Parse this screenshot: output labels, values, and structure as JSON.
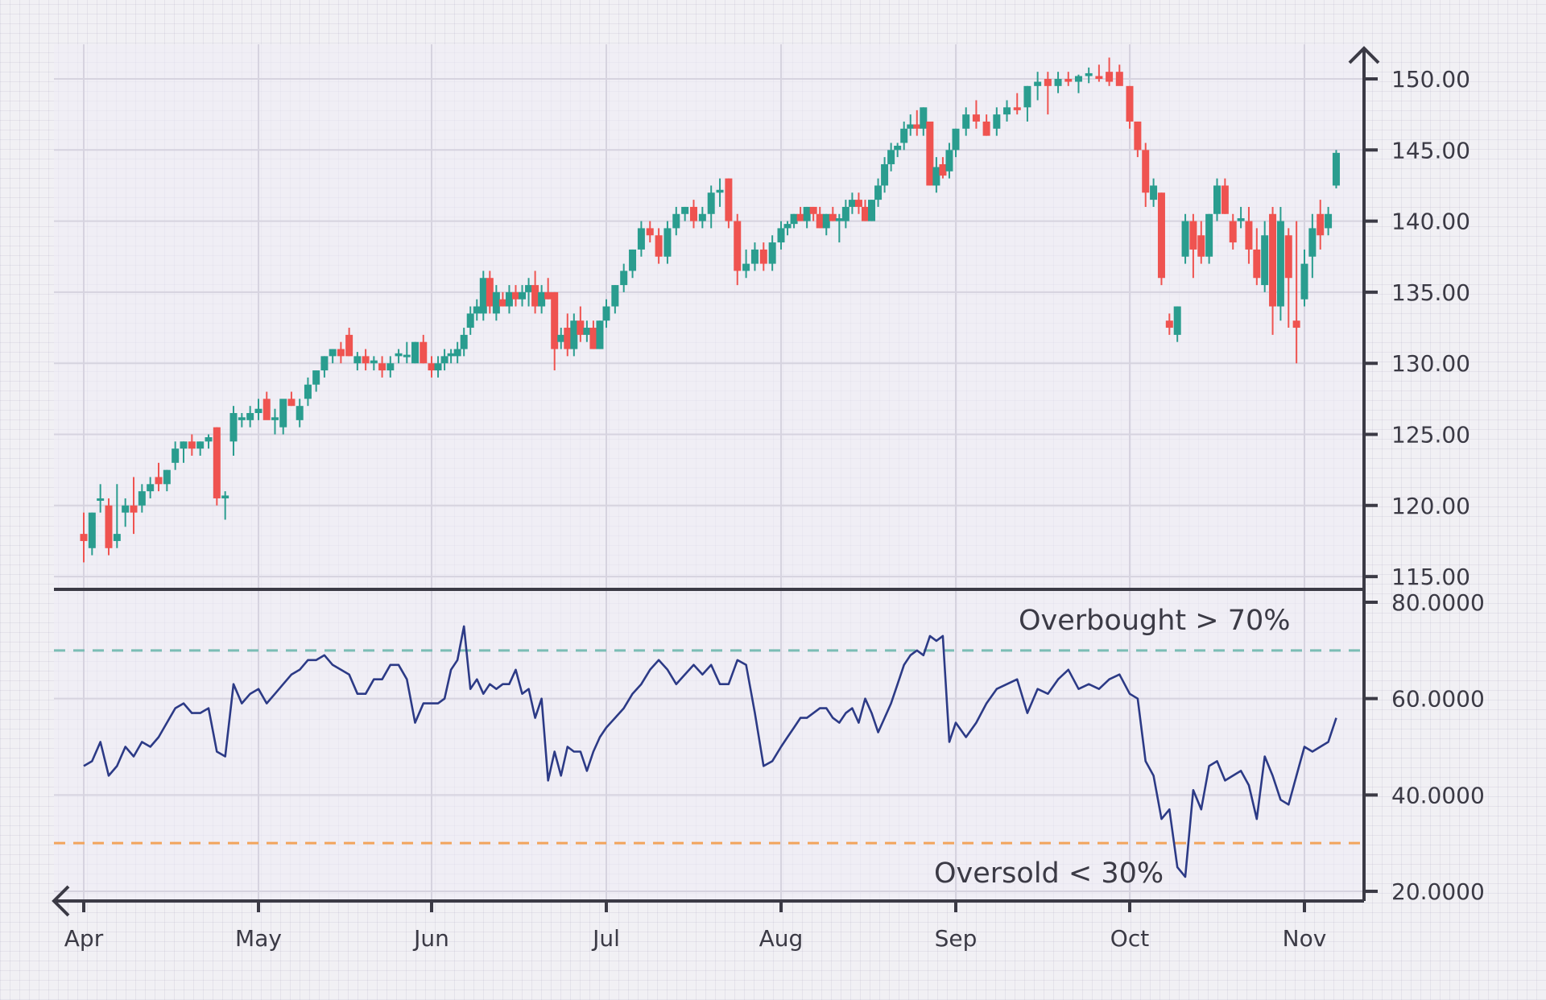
{
  "chart_data": {
    "type": "candlestick",
    "title": "",
    "price_panel": {
      "ylim": [
        114,
        152
      ],
      "yticks": [
        "115.00",
        "120.00",
        "125.00",
        "130.00",
        "135.00",
        "140.00",
        "145.00",
        "150.00"
      ],
      "ytick_values": [
        115,
        120,
        125,
        130,
        135,
        140,
        145,
        150
      ],
      "candles_ohlc": [
        [
          118,
          119.5,
          116,
          117.5
        ],
        [
          117,
          119.5,
          116.5,
          119.5
        ],
        [
          120.5,
          121.5,
          119.5,
          120.5
        ],
        [
          120,
          120.5,
          116.5,
          117
        ],
        [
          117.5,
          121.5,
          117,
          118
        ],
        [
          119.5,
          120.5,
          118.5,
          120
        ],
        [
          120,
          122,
          118,
          119.5
        ],
        [
          120,
          121.5,
          119.5,
          121
        ],
        [
          121,
          122,
          120.5,
          121.5
        ],
        [
          122,
          123,
          121,
          121.5
        ],
        [
          121.5,
          122.5,
          121,
          122.5
        ],
        [
          123,
          124.5,
          122.5,
          124
        ],
        [
          124,
          124.5,
          123,
          124.5
        ],
        [
          124.5,
          125,
          123.5,
          124
        ],
        [
          124,
          124.5,
          123.5,
          124.5
        ],
        [
          124.5,
          125,
          124,
          124.8
        ],
        [
          125.5,
          125.5,
          120,
          120.5
        ],
        [
          120.5,
          121,
          119,
          120.7
        ],
        [
          124.5,
          127,
          123.5,
          126.5
        ],
        [
          126,
          126.5,
          125.5,
          126.2
        ],
        [
          126,
          127,
          125.5,
          126.5
        ],
        [
          126.5,
          127.5,
          126,
          126.8
        ],
        [
          127.5,
          128,
          126.5,
          126
        ],
        [
          126,
          126.8,
          125,
          126.2
        ],
        [
          125.5,
          127,
          125,
          127.5
        ],
        [
          127.5,
          128,
          127,
          127
        ],
        [
          126,
          127.5,
          125.5,
          127
        ],
        [
          127.5,
          129,
          127,
          128.5
        ],
        [
          128.5,
          129.5,
          128,
          129.5
        ],
        [
          129.5,
          130.5,
          129,
          130.5
        ],
        [
          130.5,
          131,
          130,
          131
        ],
        [
          131,
          131.5,
          130,
          130.5
        ],
        [
          132,
          132.5,
          130.5,
          130.5
        ],
        [
          130,
          130.8,
          129.5,
          130.5
        ],
        [
          130.5,
          131,
          129.5,
          130
        ],
        [
          130,
          130.5,
          129.5,
          130.2
        ],
        [
          130,
          130.5,
          129,
          129.5
        ],
        [
          129.5,
          130.5,
          129,
          130
        ],
        [
          130.5,
          131,
          130,
          130.7
        ],
        [
          130.5,
          131.5,
          130,
          130.6
        ],
        [
          130,
          131.5,
          130,
          131.5
        ],
        [
          131.5,
          132,
          130,
          130
        ],
        [
          130,
          130.5,
          129,
          129.5
        ],
        [
          129.5,
          130.5,
          129,
          130
        ],
        [
          130,
          131,
          129.5,
          130.5
        ],
        [
          130.5,
          131,
          130,
          130.7
        ],
        [
          130.5,
          131.5,
          130,
          131
        ],
        [
          131,
          132.5,
          130.5,
          132
        ],
        [
          132.5,
          134,
          132,
          133.5
        ],
        [
          133.5,
          134.5,
          133,
          134
        ],
        [
          133.5,
          136.5,
          133,
          136
        ],
        [
          136,
          136.5,
          133.5,
          134
        ],
        [
          133.5,
          135.5,
          133,
          135
        ],
        [
          134.5,
          135,
          134,
          134
        ],
        [
          134,
          135.5,
          133.5,
          135
        ],
        [
          135,
          135.5,
          134,
          134.5
        ],
        [
          134.5,
          135.5,
          134,
          135
        ],
        [
          135,
          136,
          134,
          135.5
        ],
        [
          135.5,
          136.5,
          133.5,
          134
        ],
        [
          134,
          135.5,
          133.5,
          135
        ],
        [
          135,
          136,
          134.5,
          134.5
        ],
        [
          135,
          135,
          129.5,
          131
        ],
        [
          131.5,
          132.5,
          131,
          132
        ],
        [
          132.5,
          133.5,
          130.5,
          131
        ],
        [
          131,
          133.5,
          130.5,
          133
        ],
        [
          133,
          134,
          131.5,
          132
        ],
        [
          132,
          133,
          131.5,
          132.5
        ],
        [
          132.5,
          133,
          131,
          131
        ],
        [
          131,
          133,
          131,
          133
        ],
        [
          133,
          134.5,
          132.5,
          134
        ],
        [
          134,
          135.5,
          133.5,
          135.5
        ],
        [
          135.5,
          137,
          135,
          136.5
        ],
        [
          136.5,
          138,
          136,
          138
        ],
        [
          138,
          140,
          137.5,
          139.5
        ],
        [
          139.5,
          140,
          138.5,
          139
        ],
        [
          139,
          139.5,
          137,
          137.5
        ],
        [
          137.5,
          140,
          137,
          139.5
        ],
        [
          139.5,
          141,
          139,
          140.5
        ],
        [
          140.5,
          141,
          140,
          141
        ],
        [
          141,
          141.5,
          139.5,
          140
        ],
        [
          140,
          141,
          139.5,
          140.5
        ],
        [
          140.5,
          142.5,
          139.5,
          142
        ],
        [
          142,
          143,
          141,
          142.2
        ],
        [
          143,
          143,
          139.5,
          140
        ],
        [
          140,
          140.5,
          135.5,
          136.5
        ],
        [
          136.5,
          138,
          136,
          137
        ],
        [
          137,
          138.5,
          136.5,
          138
        ],
        [
          138,
          138.5,
          136.5,
          137
        ],
        [
          137,
          139,
          136.5,
          138.5
        ],
        [
          138.5,
          140,
          138,
          139.5
        ],
        [
          139.5,
          140,
          139,
          139.8
        ],
        [
          139.8,
          140.5,
          139.5,
          140.5
        ],
        [
          140.5,
          141,
          140,
          140
        ],
        [
          140,
          141,
          139.5,
          141
        ],
        [
          141,
          141,
          140,
          140.5
        ],
        [
          140.5,
          141,
          139.5,
          139.5
        ],
        [
          139.5,
          140.5,
          139,
          140.5
        ],
        [
          140.5,
          141,
          140,
          140
        ],
        [
          140,
          140.5,
          138.5,
          140.2
        ],
        [
          140,
          141.5,
          139.5,
          141
        ],
        [
          141,
          142,
          140.5,
          141.5
        ],
        [
          141.5,
          142,
          140.5,
          141
        ],
        [
          141,
          141.5,
          140,
          140
        ],
        [
          140,
          141.5,
          140,
          141.5
        ],
        [
          141.5,
          143,
          141,
          142.5
        ],
        [
          142.5,
          144.5,
          142,
          144
        ],
        [
          144,
          145.5,
          143.5,
          145
        ],
        [
          145,
          145.5,
          144.5,
          145.3
        ],
        [
          145.5,
          147,
          145,
          146.5
        ],
        [
          146.5,
          147.5,
          146,
          146.8
        ],
        [
          146.8,
          147.8,
          146,
          146.5
        ],
        [
          146.5,
          148,
          146,
          148
        ],
        [
          147,
          147,
          142.5,
          142.5
        ],
        [
          142.5,
          144.5,
          142,
          143.8
        ],
        [
          144,
          144.5,
          143,
          143.2
        ],
        [
          143.5,
          145.5,
          143,
          145
        ],
        [
          145,
          146.5,
          144.5,
          146.5
        ],
        [
          146.5,
          148,
          146,
          147.5
        ],
        [
          147.5,
          148.5,
          146.5,
          147
        ],
        [
          147,
          147.5,
          146,
          146
        ],
        [
          146.5,
          148,
          146,
          147.5
        ],
        [
          147.5,
          148.5,
          147,
          148
        ],
        [
          148,
          149,
          147.5,
          147.8
        ],
        [
          148,
          149.5,
          147,
          149.5
        ],
        [
          149.5,
          150.5,
          148.5,
          149.8
        ],
        [
          150,
          150.5,
          147.5,
          149.5
        ],
        [
          149.5,
          150.5,
          149,
          150
        ],
        [
          150,
          150.5,
          149.5,
          149.8
        ],
        [
          149.8,
          150.3,
          149,
          150.2
        ],
        [
          150.2,
          150.8,
          149.7,
          150.4
        ],
        [
          150.2,
          151,
          149.8,
          150
        ],
        [
          150.5,
          151.5,
          149.5,
          149.8
        ],
        [
          150.5,
          151,
          149.8,
          149.5
        ],
        [
          149.5,
          149.5,
          146.5,
          147
        ],
        [
          147,
          147,
          144.5,
          145
        ],
        [
          145,
          145.5,
          141,
          142
        ],
        [
          141.5,
          143,
          141,
          142.5
        ],
        [
          142,
          142,
          135.5,
          136
        ],
        [
          133,
          133.5,
          132,
          132.5
        ],
        [
          132,
          134,
          131.5,
          134
        ],
        [
          137.5,
          140.5,
          137,
          140
        ],
        [
          140,
          140.5,
          136,
          138
        ],
        [
          139,
          140,
          137,
          137.5
        ],
        [
          137.5,
          140.5,
          137,
          140.5
        ],
        [
          140.5,
          143,
          140,
          142.5
        ],
        [
          142.5,
          143,
          140.5,
          140.5
        ],
        [
          140,
          140.5,
          138,
          138.5
        ],
        [
          140,
          141,
          139.5,
          140.2
        ],
        [
          140,
          141,
          137,
          138
        ],
        [
          138,
          139.5,
          135.5,
          136
        ],
        [
          135.5,
          140,
          135,
          139
        ],
        [
          140.5,
          141,
          132,
          134
        ],
        [
          134,
          141,
          133,
          140
        ],
        [
          139,
          139.5,
          132.5,
          136
        ],
        [
          133,
          140,
          130,
          132.5
        ],
        [
          134.5,
          138,
          134,
          137
        ],
        [
          137.5,
          140.5,
          136,
          139.5
        ],
        [
          140.5,
          141.5,
          138,
          139
        ],
        [
          139.5,
          141,
          139,
          140.5
        ],
        [
          142.5,
          145,
          142.3,
          144.8
        ]
      ]
    },
    "rsi_panel": {
      "ylim": [
        20,
        80
      ],
      "yticks": [
        "20.0000",
        "40.0000",
        "60.0000",
        "80.0000"
      ],
      "ytick_values": [
        20,
        40,
        60,
        80
      ],
      "overbought": 70,
      "oversold": 30,
      "overbought_label": "Overbought > 70%",
      "oversold_label": "Oversold < 30%",
      "values": [
        46,
        47,
        51,
        44,
        46,
        50,
        48,
        51,
        50,
        52,
        55,
        58,
        59,
        57,
        57,
        58,
        49,
        48,
        63,
        59,
        61,
        62,
        59,
        61,
        63,
        65,
        66,
        68,
        68,
        69,
        67,
        66,
        65,
        61,
        61,
        64,
        64,
        67,
        67,
        64,
        55,
        59,
        59,
        59,
        60,
        66,
        68,
        75,
        62,
        64,
        61,
        63,
        62,
        63,
        63,
        66,
        61,
        62,
        56,
        60,
        43,
        49,
        44,
        50,
        49,
        49,
        45,
        49,
        52,
        54,
        56,
        58,
        61,
        63,
        66,
        68,
        66,
        63,
        65,
        67,
        65,
        67,
        63,
        63,
        68,
        67,
        57,
        46,
        47,
        50,
        52,
        54,
        56,
        56,
        57,
        58,
        58,
        56,
        55,
        57,
        58,
        55,
        60,
        57,
        53,
        56,
        59,
        63,
        67,
        69,
        70,
        69,
        73,
        72,
        73,
        51,
        55,
        52,
        55,
        59,
        62,
        63,
        64,
        57,
        62,
        61,
        64,
        66,
        62,
        63,
        62,
        64,
        65,
        61,
        60,
        47,
        44,
        35,
        37,
        25,
        23,
        41,
        37,
        46,
        47,
        43,
        44,
        45,
        42,
        35,
        48,
        44,
        39,
        38,
        44,
        50,
        49,
        50,
        51,
        56
      ]
    },
    "x_axis": {
      "tick_labels": [
        "Apr",
        "May",
        "Jun",
        "Jul",
        "Aug",
        "Sep",
        "Oct",
        "Nov"
      ],
      "tick_index": [
        0,
        21,
        42,
        69,
        89,
        116,
        133,
        155
      ]
    },
    "colors": {
      "up": "#2a9d8f",
      "down": "#ef5350",
      "rsi": "#2c3a86",
      "overbought": "#7bbdb5",
      "oversold": "#f2a45c",
      "axis": "#3b3a45",
      "grid": "#d6d3df"
    }
  }
}
